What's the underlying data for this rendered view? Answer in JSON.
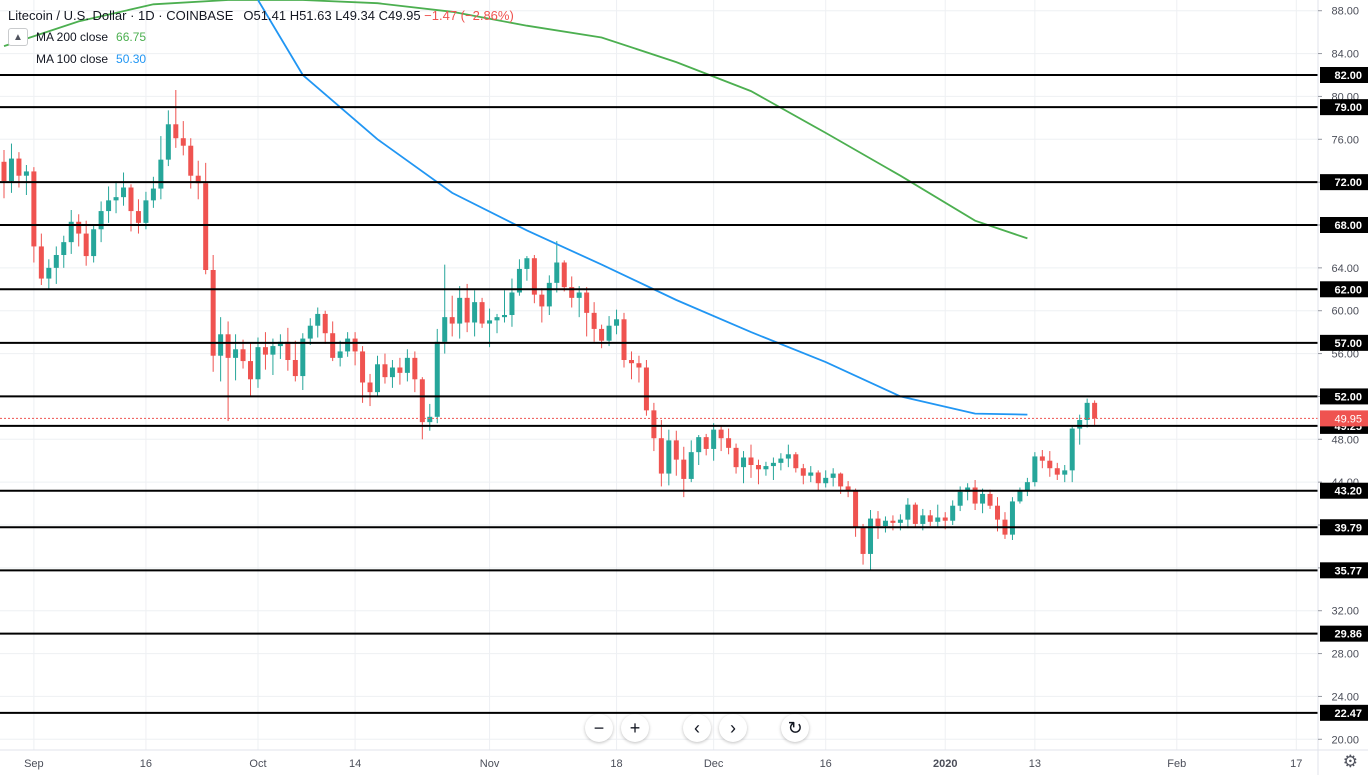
{
  "legend": {
    "symbol": "Litecoin / U.S. Dollar · 1D · COINBASE",
    "open": "O51.41",
    "high": "H51.63",
    "low": "L49.34",
    "close": "C49.95",
    "change": "−1.47 (−2.86%)",
    "ma200_label": "MA 200 close",
    "ma200_value": "66.75",
    "ma100_label": "MA 100 close",
    "ma100_value": "50.30"
  },
  "colors": {
    "up": "#26a69a",
    "down": "#ef5350",
    "ma200": "#4caf50",
    "ma100": "#2196f3",
    "grid": "#eef0f3",
    "level_line": "#000000",
    "price_label_bg": "#ef5350"
  },
  "chart_data": {
    "type": "candlestick",
    "title": "Litecoin / U.S. Dollar · 1D · COINBASE",
    "y_range": [
      19,
      89
    ],
    "y_ticks": [
      "20.00",
      "24.00",
      "28.00",
      "32.00",
      "36.00",
      "40.00",
      "44.00",
      "48.00",
      "52.00",
      "56.00",
      "60.00",
      "64.00",
      "68.00",
      "72.00",
      "76.00",
      "80.00",
      "84.00",
      "88.00"
    ],
    "x_ticks": [
      {
        "label": "Sep",
        "day": 4
      },
      {
        "label": "16",
        "day": 19
      },
      {
        "label": "Oct",
        "day": 34
      },
      {
        "label": "14",
        "day": 47
      },
      {
        "label": "Nov",
        "day": 65
      },
      {
        "label": "18",
        "day": 82
      },
      {
        "label": "Dec",
        "day": 95
      },
      {
        "label": "16",
        "day": 110
      },
      {
        "label": "2020",
        "day": 126
      },
      {
        "label": "13",
        "day": 138
      },
      {
        "label": "Feb",
        "day": 157
      },
      {
        "label": "17",
        "day": 173
      }
    ],
    "horizontal_levels": [
      82.0,
      79.0,
      72.0,
      68.0,
      62.0,
      57.0,
      52.0,
      49.25,
      43.2,
      39.79,
      35.77,
      29.86,
      22.47
    ],
    "last_price": 49.95,
    "ma200": [
      [
        0,
        84.7
      ],
      [
        10,
        87.0
      ],
      [
        20,
        88.6
      ],
      [
        30,
        89.0
      ],
      [
        40,
        89.0
      ],
      [
        50,
        88.7
      ],
      [
        60,
        87.9
      ],
      [
        70,
        86.6
      ],
      [
        80,
        85.5
      ],
      [
        90,
        83.2
      ],
      [
        100,
        80.5
      ],
      [
        110,
        76.6
      ],
      [
        120,
        72.6
      ],
      [
        130,
        68.4
      ],
      [
        137,
        66.75
      ]
    ],
    "ma100": [
      [
        34,
        89.0
      ],
      [
        40,
        82.0
      ],
      [
        50,
        76.0
      ],
      [
        60,
        71.0
      ],
      [
        70,
        67.5
      ],
      [
        80,
        64.3
      ],
      [
        90,
        61.0
      ],
      [
        100,
        58.0
      ],
      [
        110,
        55.2
      ],
      [
        120,
        52.0
      ],
      [
        130,
        50.4
      ],
      [
        137,
        50.3
      ]
    ],
    "candles": [
      [
        73.9,
        75.0,
        70.5,
        72.1
      ],
      [
        72.1,
        75.6,
        71.0,
        74.2
      ],
      [
        74.2,
        74.8,
        71.5,
        72.6
      ],
      [
        72.6,
        73.6,
        70.8,
        73.0
      ],
      [
        73.0,
        73.4,
        64.5,
        66.0
      ],
      [
        66.0,
        67.2,
        62.4,
        63.0
      ],
      [
        63.0,
        64.8,
        62.0,
        64.0
      ],
      [
        64.0,
        66.0,
        62.5,
        65.2
      ],
      [
        65.2,
        67.0,
        64.0,
        66.4
      ],
      [
        66.4,
        69.4,
        65.3,
        68.3
      ],
      [
        68.3,
        69.0,
        66.0,
        67.2
      ],
      [
        67.2,
        68.4,
        64.2,
        65.1
      ],
      [
        65.1,
        68.0,
        64.5,
        67.6
      ],
      [
        67.6,
        70.2,
        66.4,
        69.3
      ],
      [
        69.3,
        71.6,
        68.2,
        70.3
      ],
      [
        70.3,
        72.1,
        69.1,
        70.6
      ],
      [
        70.6,
        72.9,
        69.8,
        71.5
      ],
      [
        71.5,
        71.8,
        67.4,
        69.3
      ],
      [
        69.3,
        70.4,
        67.2,
        68.2
      ],
      [
        68.2,
        71.1,
        67.6,
        70.3
      ],
      [
        70.3,
        72.5,
        69.6,
        71.4
      ],
      [
        71.4,
        76.3,
        70.4,
        74.1
      ],
      [
        74.1,
        78.7,
        73.5,
        77.4
      ],
      [
        77.4,
        80.6,
        75.2,
        76.1
      ],
      [
        76.1,
        77.7,
        74.5,
        75.4
      ],
      [
        75.4,
        76.1,
        71.4,
        72.6
      ],
      [
        72.6,
        74.0,
        70.4,
        71.9
      ],
      [
        71.9,
        73.8,
        63.4,
        63.8
      ],
      [
        63.8,
        65.2,
        54.3,
        55.8
      ],
      [
        55.8,
        59.4,
        53.4,
        57.8
      ],
      [
        57.8,
        59.0,
        49.7,
        55.6
      ],
      [
        55.6,
        57.8,
        53.5,
        56.4
      ],
      [
        56.4,
        57.3,
        54.6,
        55.3
      ],
      [
        55.3,
        57.0,
        52.0,
        53.6
      ],
      [
        53.6,
        57.5,
        52.8,
        56.6
      ],
      [
        56.6,
        58.0,
        54.5,
        55.9
      ],
      [
        55.9,
        57.4,
        54.0,
        56.7
      ],
      [
        56.7,
        57.8,
        55.5,
        57.1
      ],
      [
        57.1,
        58.4,
        54.4,
        55.4
      ],
      [
        55.4,
        57.2,
        53.4,
        53.9
      ],
      [
        53.9,
        57.9,
        52.6,
        57.4
      ],
      [
        57.4,
        59.3,
        56.8,
        58.6
      ],
      [
        58.6,
        60.3,
        57.5,
        59.7
      ],
      [
        59.7,
        60.0,
        56.9,
        57.9
      ],
      [
        57.9,
        59.0,
        55.3,
        55.6
      ],
      [
        55.6,
        57.2,
        54.8,
        56.2
      ],
      [
        56.2,
        58.0,
        55.7,
        57.4
      ],
      [
        57.4,
        58.0,
        54.9,
        56.2
      ],
      [
        56.2,
        56.7,
        51.4,
        53.3
      ],
      [
        53.3,
        54.1,
        51.1,
        52.4
      ],
      [
        52.4,
        55.8,
        52.0,
        55.0
      ],
      [
        55.0,
        56.0,
        53.2,
        53.8
      ],
      [
        53.8,
        55.4,
        52.8,
        54.7
      ],
      [
        54.7,
        55.6,
        53.1,
        54.2
      ],
      [
        54.2,
        56.4,
        53.4,
        55.6
      ],
      [
        55.6,
        56.2,
        52.4,
        53.6
      ],
      [
        53.6,
        53.8,
        48.0,
        49.6
      ],
      [
        49.6,
        51.3,
        48.8,
        50.1
      ],
      [
        50.1,
        58.3,
        49.5,
        57.1
      ],
      [
        57.1,
        64.3,
        56.0,
        59.4
      ],
      [
        59.4,
        61.4,
        57.6,
        58.8
      ],
      [
        58.8,
        62.3,
        57.4,
        61.2
      ],
      [
        61.2,
        62.5,
        58.0,
        58.9
      ],
      [
        58.9,
        61.9,
        57.6,
        60.8
      ],
      [
        60.8,
        61.2,
        58.4,
        58.8
      ],
      [
        58.8,
        60.2,
        56.6,
        59.1
      ],
      [
        59.1,
        59.7,
        57.9,
        59.4
      ],
      [
        59.4,
        61.9,
        58.9,
        59.6
      ],
      [
        59.6,
        63.0,
        58.5,
        61.7
      ],
      [
        61.7,
        64.8,
        61.4,
        63.9
      ],
      [
        63.9,
        65.1,
        62.8,
        64.9
      ],
      [
        64.9,
        65.2,
        60.7,
        61.5
      ],
      [
        61.5,
        62.1,
        58.9,
        60.4
      ],
      [
        60.4,
        63.3,
        59.6,
        62.6
      ],
      [
        62.6,
        66.5,
        61.7,
        64.5
      ],
      [
        64.5,
        64.7,
        61.8,
        62.2
      ],
      [
        62.2,
        63.2,
        60.3,
        61.2
      ],
      [
        61.2,
        62.3,
        59.4,
        61.7
      ],
      [
        61.7,
        62.2,
        57.6,
        59.8
      ],
      [
        59.8,
        60.8,
        57.1,
        58.3
      ],
      [
        58.3,
        58.7,
        56.5,
        57.2
      ],
      [
        57.2,
        59.5,
        56.7,
        58.6
      ],
      [
        58.6,
        60.1,
        57.8,
        59.2
      ],
      [
        59.2,
        59.8,
        54.7,
        55.4
      ],
      [
        55.4,
        56.2,
        53.6,
        55.1
      ],
      [
        55.1,
        55.8,
        53.3,
        54.7
      ],
      [
        54.7,
        55.4,
        50.2,
        50.7
      ],
      [
        50.7,
        51.4,
        46.9,
        48.1
      ],
      [
        48.1,
        49.8,
        43.6,
        44.8
      ],
      [
        44.8,
        48.9,
        43.7,
        47.9
      ],
      [
        47.9,
        48.8,
        44.6,
        46.1
      ],
      [
        46.1,
        47.3,
        42.6,
        44.3
      ],
      [
        44.3,
        47.9,
        44.0,
        46.8
      ],
      [
        46.8,
        48.4,
        45.6,
        48.2
      ],
      [
        48.2,
        48.5,
        46.5,
        47.1
      ],
      [
        47.1,
        49.5,
        46.0,
        48.9
      ],
      [
        48.9,
        49.2,
        46.9,
        48.1
      ],
      [
        48.1,
        49.0,
        46.6,
        47.2
      ],
      [
        47.2,
        47.6,
        44.8,
        45.4
      ],
      [
        45.4,
        46.9,
        43.9,
        46.3
      ],
      [
        46.3,
        47.5,
        44.4,
        45.6
      ],
      [
        45.6,
        46.1,
        43.8,
        45.2
      ],
      [
        45.2,
        45.9,
        44.6,
        45.5
      ],
      [
        45.5,
        46.3,
        44.2,
        45.8
      ],
      [
        45.8,
        46.7,
        45.1,
        46.2
      ],
      [
        46.2,
        47.5,
        45.4,
        46.6
      ],
      [
        46.6,
        46.8,
        44.9,
        45.3
      ],
      [
        45.3,
        45.7,
        43.8,
        44.6
      ],
      [
        44.6,
        45.5,
        44.0,
        44.9
      ],
      [
        44.9,
        45.1,
        43.2,
        43.9
      ],
      [
        43.9,
        45.1,
        43.5,
        44.4
      ],
      [
        44.4,
        45.3,
        43.6,
        44.8
      ],
      [
        44.8,
        44.9,
        42.9,
        43.6
      ],
      [
        43.6,
        44.1,
        42.6,
        43.2
      ],
      [
        43.2,
        43.4,
        38.9,
        39.8
      ],
      [
        39.8,
        40.1,
        36.3,
        37.3
      ],
      [
        37.3,
        41.4,
        35.8,
        40.6
      ],
      [
        40.6,
        41.3,
        38.7,
        39.9
      ],
      [
        39.9,
        40.8,
        39.3,
        40.4
      ],
      [
        40.4,
        40.9,
        39.5,
        40.2
      ],
      [
        40.2,
        41.0,
        39.5,
        40.5
      ],
      [
        40.5,
        42.5,
        39.7,
        41.9
      ],
      [
        41.9,
        42.1,
        39.8,
        40.1
      ],
      [
        40.1,
        41.5,
        39.5,
        40.9
      ],
      [
        40.9,
        41.4,
        39.9,
        40.3
      ],
      [
        40.3,
        41.9,
        39.8,
        40.7
      ],
      [
        40.7,
        41.2,
        39.6,
        40.4
      ],
      [
        40.4,
        42.3,
        40.0,
        41.8
      ],
      [
        41.8,
        43.6,
        41.3,
        43.1
      ],
      [
        43.1,
        43.9,
        42.3,
        43.5
      ],
      [
        43.5,
        44.2,
        41.4,
        42.0
      ],
      [
        42.0,
        43.4,
        41.1,
        42.9
      ],
      [
        42.9,
        43.3,
        41.5,
        41.8
      ],
      [
        41.8,
        42.6,
        39.4,
        40.5
      ],
      [
        40.5,
        41.2,
        38.7,
        39.1
      ],
      [
        39.1,
        42.6,
        38.6,
        42.2
      ],
      [
        42.2,
        43.5,
        42.0,
        43.2
      ],
      [
        43.2,
        44.4,
        42.7,
        44.0
      ],
      [
        44.0,
        46.8,
        43.6,
        46.4
      ],
      [
        46.4,
        47.0,
        45.3,
        46.0
      ],
      [
        46.0,
        46.9,
        44.5,
        45.3
      ],
      [
        45.3,
        45.8,
        44.2,
        44.7
      ],
      [
        44.7,
        45.6,
        44.0,
        45.1
      ],
      [
        45.1,
        49.3,
        44.0,
        49.0
      ],
      [
        49.0,
        50.3,
        47.5,
        49.8
      ],
      [
        49.8,
        51.8,
        49.1,
        51.4
      ],
      [
        51.4,
        51.63,
        49.34,
        49.95
      ]
    ]
  },
  "price_axis": {
    "level_labels": [
      "82.00",
      "79.00",
      "72.00",
      "68.00",
      "62.00",
      "57.00",
      "52.00",
      "49.25",
      "43.20",
      "39.79",
      "35.77",
      "29.86",
      "22.47"
    ],
    "last_price_label": "49.95"
  },
  "toolbar": {
    "zoom_out_symbol": "−",
    "zoom_in_symbol": "+",
    "scroll_left_symbol": "‹",
    "scroll_right_symbol": "›",
    "reset_symbol": "↻"
  },
  "settings_symbol": "⚙"
}
